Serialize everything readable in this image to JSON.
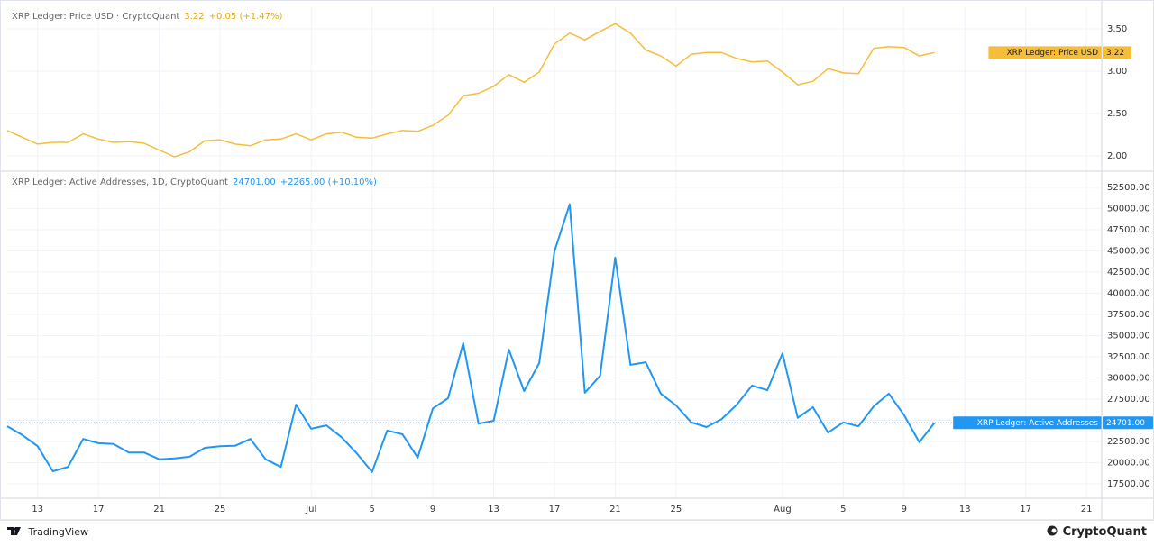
{
  "chart_data": [
    {
      "type": "line",
      "legend": {
        "title": "XRP Ledger: Price USD · CryptoQuant",
        "last": "3.22",
        "change": "+0.05 (+1.47%)"
      },
      "x": [
        "Jun 11",
        "Jun 12",
        "Jun 13",
        "Jun 14",
        "Jun 15",
        "Jun 16",
        "Jun 17",
        "Jun 18",
        "Jun 19",
        "Jun 20",
        "Jun 21",
        "Jun 22",
        "Jun 23",
        "Jun 24",
        "Jun 25",
        "Jun 26",
        "Jun 27",
        "Jun 28",
        "Jun 29",
        "Jun 30",
        "Jul 1",
        "Jul 2",
        "Jul 3",
        "Jul 4",
        "Jul 5",
        "Jul 6",
        "Jul 7",
        "Jul 8",
        "Jul 9",
        "Jul 10",
        "Jul 11",
        "Jul 12",
        "Jul 13",
        "Jul 14",
        "Jul 15",
        "Jul 16",
        "Jul 17",
        "Jul 18",
        "Jul 19",
        "Jul 20",
        "Jul 21",
        "Jul 22",
        "Jul 23",
        "Jul 24",
        "Jul 25",
        "Jul 26",
        "Jul 27",
        "Jul 28",
        "Jul 29",
        "Jul 30",
        "Jul 31",
        "Aug 1",
        "Aug 2",
        "Aug 3",
        "Aug 4",
        "Aug 5",
        "Aug 6",
        "Aug 7",
        "Aug 8",
        "Aug 9",
        "Aug 10",
        "Aug 11"
      ],
      "series": [
        {
          "name": "XRP Ledger: Price USD",
          "color": "#f5bd3a",
          "values": [
            2.3,
            2.22,
            2.14,
            2.16,
            2.16,
            2.26,
            2.2,
            2.16,
            2.17,
            2.15,
            2.07,
            1.99,
            2.05,
            2.18,
            2.19,
            2.14,
            2.12,
            2.19,
            2.2,
            2.26,
            2.19,
            2.26,
            2.28,
            2.22,
            2.21,
            2.26,
            2.3,
            2.29,
            2.36,
            2.48,
            2.71,
            2.74,
            2.82,
            2.96,
            2.87,
            2.99,
            3.32,
            3.45,
            3.37,
            3.47,
            3.56,
            3.45,
            3.25,
            3.18,
            3.06,
            3.2,
            3.22,
            3.22,
            3.15,
            3.11,
            3.12,
            2.99,
            2.84,
            2.88,
            3.03,
            2.98,
            2.97,
            3.27,
            3.29,
            3.28,
            3.18,
            3.22
          ]
        }
      ],
      "xlim": [
        "Jun 11",
        "Aug 22"
      ],
      "ylim": [
        1.82,
        3.755
      ],
      "yticks": [
        {
          "value": 2,
          "label": "2.00"
        },
        {
          "value": 2.5,
          "label": "2.50"
        },
        {
          "value": 3,
          "label": "3.00"
        },
        {
          "value": 3.5,
          "label": "3.50"
        }
      ],
      "grid": true
    },
    {
      "type": "line",
      "legend": {
        "title": "XRP Ledger: Active Addresses, 1D, CryptoQuant",
        "last": "24701.00",
        "change": "+2265.00 (+10.10%)"
      },
      "x": [
        "Jun 11",
        "Jun 12",
        "Jun 13",
        "Jun 14",
        "Jun 15",
        "Jun 16",
        "Jun 17",
        "Jun 18",
        "Jun 19",
        "Jun 20",
        "Jun 21",
        "Jun 22",
        "Jun 23",
        "Jun 24",
        "Jun 25",
        "Jun 26",
        "Jun 27",
        "Jun 28",
        "Jun 29",
        "Jun 30",
        "Jul 1",
        "Jul 2",
        "Jul 3",
        "Jul 4",
        "Jul 5",
        "Jul 6",
        "Jul 7",
        "Jul 8",
        "Jul 9",
        "Jul 10",
        "Jul 11",
        "Jul 12",
        "Jul 13",
        "Jul 14",
        "Jul 15",
        "Jul 16",
        "Jul 17",
        "Jul 18",
        "Jul 19",
        "Jul 20",
        "Jul 21",
        "Jul 22",
        "Jul 23",
        "Jul 24",
        "Jul 25",
        "Jul 26",
        "Jul 27",
        "Jul 28",
        "Jul 29",
        "Jul 30",
        "Jul 31",
        "Aug 1",
        "Aug 2",
        "Aug 3",
        "Aug 4",
        "Aug 5",
        "Aug 6",
        "Aug 7",
        "Aug 8",
        "Aug 9",
        "Aug 10",
        "Aug 11"
      ],
      "series": [
        {
          "name": "XRP Ledger: Active Addresses",
          "color": "#2196f3",
          "values": [
            24300,
            23250,
            21950,
            18990,
            19500,
            22800,
            22300,
            22200,
            21200,
            21200,
            20400,
            20500,
            20700,
            21750,
            21950,
            22000,
            22800,
            20400,
            19500,
            26850,
            24000,
            24400,
            23000,
            21100,
            18900,
            23800,
            23350,
            20600,
            26400,
            27600,
            34100,
            24600,
            24950,
            33350,
            28450,
            31750,
            44950,
            50500,
            28250,
            30250,
            44200,
            31550,
            31850,
            28150,
            26750,
            24750,
            24200,
            25150,
            26850,
            29100,
            28550,
            32900,
            25300,
            26550,
            23550,
            24750,
            24300,
            26650,
            28150,
            25600,
            22400,
            24701
          ]
        }
      ],
      "xlim": [
        "Jun 11",
        "Aug 22"
      ],
      "xticks": [
        {
          "value": "Jun 13",
          "label": "13"
        },
        {
          "value": "Jun 17",
          "label": "17"
        },
        {
          "value": "Jun 21",
          "label": "21"
        },
        {
          "value": "Jun 25",
          "label": "25"
        },
        {
          "value": "Jul 1",
          "label": "Jul"
        },
        {
          "value": "Jul 5",
          "label": "5"
        },
        {
          "value": "Jul 9",
          "label": "9"
        },
        {
          "value": "Jul 13",
          "label": "13"
        },
        {
          "value": "Jul 17",
          "label": "17"
        },
        {
          "value": "Jul 21",
          "label": "21"
        },
        {
          "value": "Jul 25",
          "label": "25"
        },
        {
          "value": "Aug 1",
          "label": "Aug"
        },
        {
          "value": "Aug 5",
          "label": "5"
        },
        {
          "value": "Aug 9",
          "label": "9"
        },
        {
          "value": "Aug 13",
          "label": "13"
        },
        {
          "value": "Aug 17",
          "label": "17"
        },
        {
          "value": "Aug 21",
          "label": "21"
        }
      ],
      "ylim": [
        15800,
        54400
      ],
      "yticks": [
        {
          "value": 17500,
          "label": "17500.00"
        },
        {
          "value": 20000,
          "label": "20000.00"
        },
        {
          "value": 22500,
          "label": "22500.00"
        },
        {
          "value": 25000,
          "label": "25000.00"
        },
        {
          "value": 27500,
          "label": "27500.00"
        },
        {
          "value": 30000,
          "label": "30000.00"
        },
        {
          "value": 32500,
          "label": "32500.00"
        },
        {
          "value": 35000,
          "label": "35000.00"
        },
        {
          "value": 37500,
          "label": "37500.00"
        },
        {
          "value": 40000,
          "label": "40000.00"
        },
        {
          "value": 42500,
          "label": "42500.00"
        },
        {
          "value": 45000,
          "label": "45000.00"
        },
        {
          "value": 47500,
          "label": "47500.00"
        },
        {
          "value": 50000,
          "label": "50000.00"
        },
        {
          "value": 52500,
          "label": "52500.00"
        }
      ],
      "grid": true
    }
  ],
  "footer": {
    "left": "TradingView",
    "right": "CryptoQuant"
  }
}
